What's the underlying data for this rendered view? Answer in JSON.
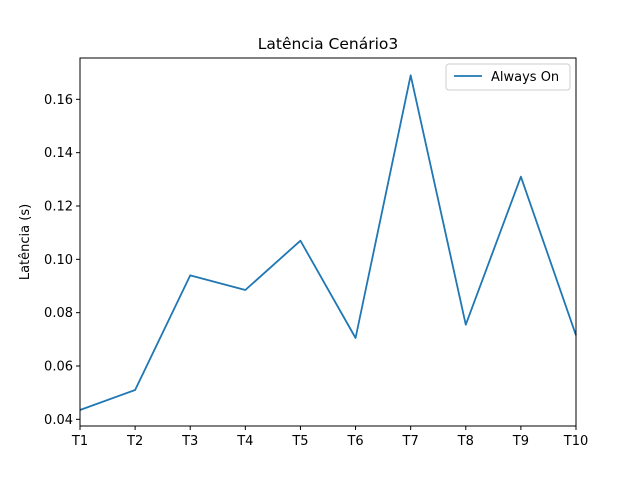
{
  "chart_data": {
    "type": "line",
    "title": "Latência Cenário3",
    "xlabel": "",
    "ylabel": "Latência (s)",
    "categories": [
      "T1",
      "T2",
      "T3",
      "T4",
      "T5",
      "T6",
      "T7",
      "T8",
      "T9",
      "T10"
    ],
    "series": [
      {
        "name": "Always On",
        "color": "#1f77b4",
        "values": [
          0.0435,
          0.051,
          0.094,
          0.0885,
          0.107,
          0.0705,
          0.169,
          0.0755,
          0.131,
          0.0715
        ]
      }
    ],
    "ylim": [
      0.0375,
      0.1755
    ],
    "yticks": [
      "0.04",
      "0.06",
      "0.08",
      "0.10",
      "0.12",
      "0.14",
      "0.16"
    ],
    "grid": false,
    "legend_position": "top-right"
  }
}
